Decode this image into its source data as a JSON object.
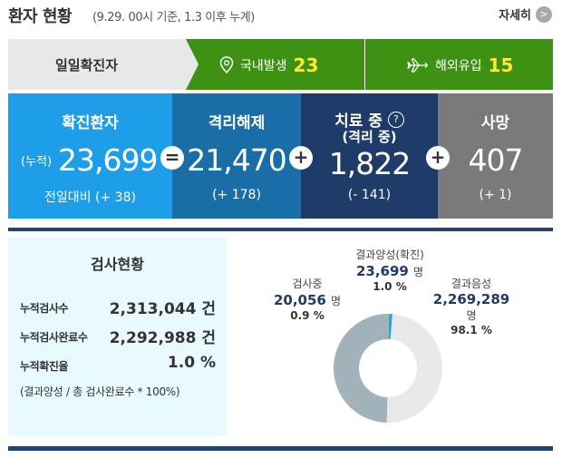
{
  "header": {
    "title": "환자 현황",
    "subtitle": "(9.29. 00시 기준, 1.3 이후 누계)",
    "detail_label": "자세히",
    "detail_button": ">"
  },
  "daily": {
    "label": "일일확진자",
    "domestic": {
      "label": "국내발생",
      "value": "23",
      "icon": "location-pin-icon"
    },
    "overseas": {
      "label": "해외유입",
      "value": "15",
      "icon": "airplane-icon"
    }
  },
  "stats": {
    "confirmed": {
      "title": "확진환자",
      "prefix": "(누적)",
      "value": "23,699",
      "change": "전일대비 (+ 38)"
    },
    "released": {
      "title": "격리해제",
      "value": "21,470",
      "change": "(+ 178)"
    },
    "isolated": {
      "title": "치료 중",
      "help": "?",
      "subtitle": "(격리 중)",
      "value": "1,822",
      "change": "(- 141)"
    },
    "deaths": {
      "title": "사망",
      "value": "407",
      "change": "(+ 1)"
    },
    "op_equals": "=",
    "op_plus1": "+",
    "op_plus2": "+",
    "colors": {
      "confirmed": "#1e9ee8",
      "released": "#1a6ea8",
      "isolated": "#1e3b69",
      "deaths": "#7a7a7a"
    }
  },
  "tests": {
    "title": "검사현황",
    "rows": [
      {
        "label": "누적검사수",
        "value": "2,313,044 건"
      },
      {
        "label": "누적검사완료수",
        "value": "2,292,988 건"
      },
      {
        "label": "누적확진율",
        "value": "1.0 %"
      }
    ],
    "note": "(결과양성 / 총 검사완료수 * 100%)"
  },
  "donut": {
    "positive": {
      "name": "결과양성(확진)",
      "number": "23,699",
      "unit": "명",
      "percent": "1.0 %",
      "value": 1.0,
      "color": "#1ea6e0"
    },
    "testing": {
      "name": "검사중",
      "number": "20,056",
      "unit": "명",
      "percent": "0.9 %",
      "value": 0.9,
      "color": "#e9e9e9"
    },
    "negative": {
      "name": "결과음성",
      "number": "2,269,289",
      "unit": "명",
      "percent": "98.1 %",
      "value": 98.1,
      "color": "#a2b2bb"
    }
  }
}
